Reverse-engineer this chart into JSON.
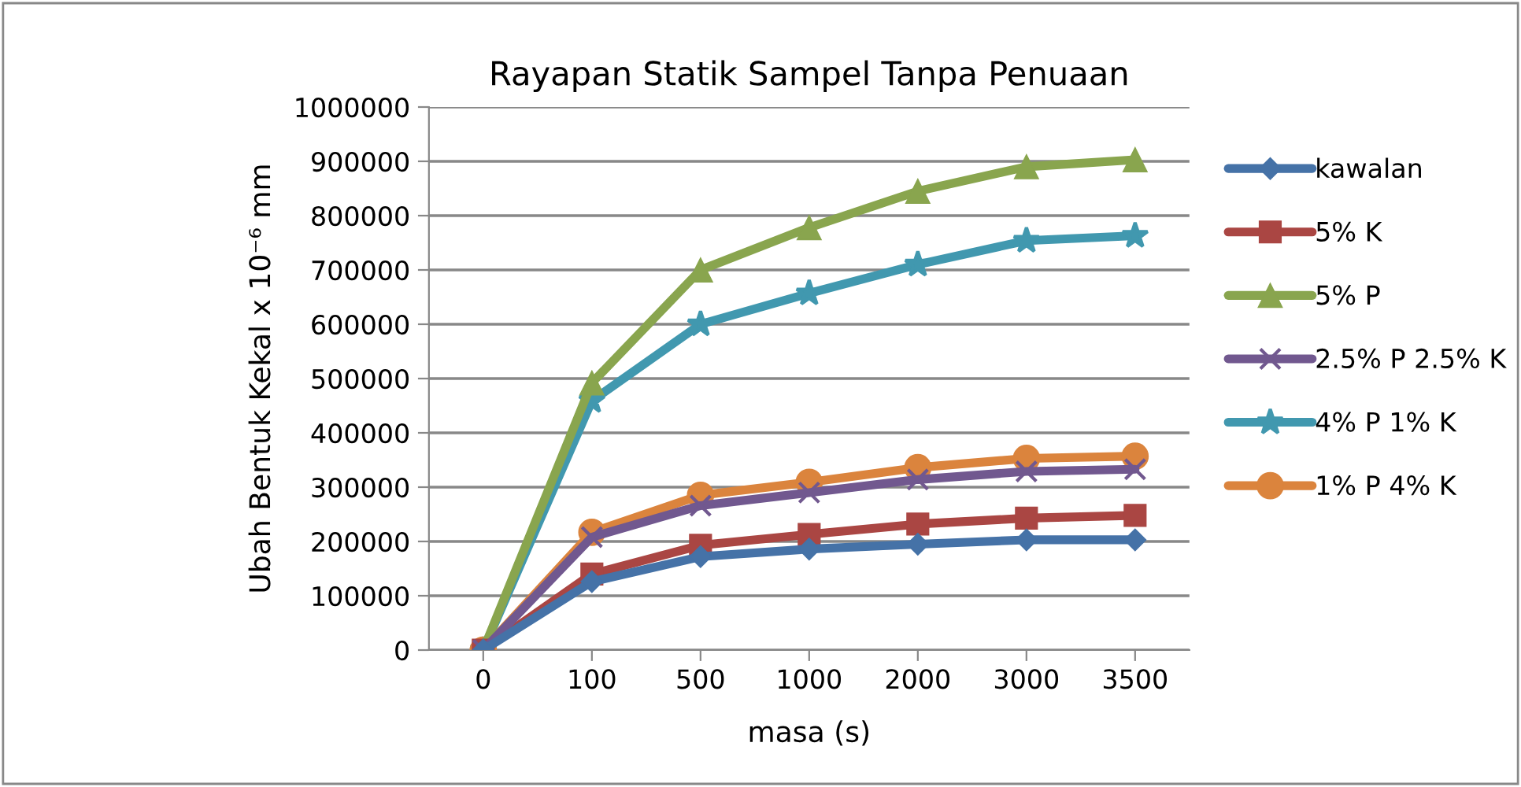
{
  "chart_data": {
    "type": "line",
    "title": "Rayapan Statik Sampel Tanpa Penuaan",
    "xlabel": "masa (s)",
    "ylabel": "Ubah Bentuk Kekal x 10⁻⁶ mm",
    "categories": [
      "0",
      "100",
      "500",
      "1000",
      "2000",
      "3000",
      "3500"
    ],
    "ylim": [
      0,
      1000000
    ],
    "yticks": [
      0,
      100000,
      200000,
      300000,
      400000,
      500000,
      600000,
      700000,
      800000,
      900000,
      1000000
    ],
    "grid": "y",
    "legend": "right",
    "line_style": "solid",
    "series": [
      {
        "name": "kawalan",
        "color": "#4572a7",
        "marker": "diamond",
        "values": [
          0,
          126000,
          172000,
          186000,
          195000,
          203000,
          203000
        ]
      },
      {
        "name": "5% K",
        "color": "#aa4643",
        "marker": "square",
        "values": [
          0,
          140000,
          193000,
          213000,
          232000,
          243000,
          248000
        ]
      },
      {
        "name": "5% P",
        "color": "#89a54e",
        "marker": "triangle",
        "values": [
          0,
          492000,
          700000,
          778000,
          845000,
          890000,
          903000
        ]
      },
      {
        "name": "2.5% P 2.5% K",
        "color": "#71588f",
        "marker": "cross",
        "values": [
          0,
          208000,
          266000,
          290000,
          314000,
          329000,
          333000
        ]
      },
      {
        "name": "4% P 1% K",
        "color": "#4198af",
        "marker": "star",
        "values": [
          0,
          459000,
          600000,
          657000,
          710000,
          754000,
          763000
        ]
      },
      {
        "name": "1% P 4% K",
        "color": "#db843d",
        "marker": "circle",
        "values": [
          0,
          217000,
          285000,
          309000,
          336000,
          353000,
          357000
        ]
      }
    ]
  }
}
